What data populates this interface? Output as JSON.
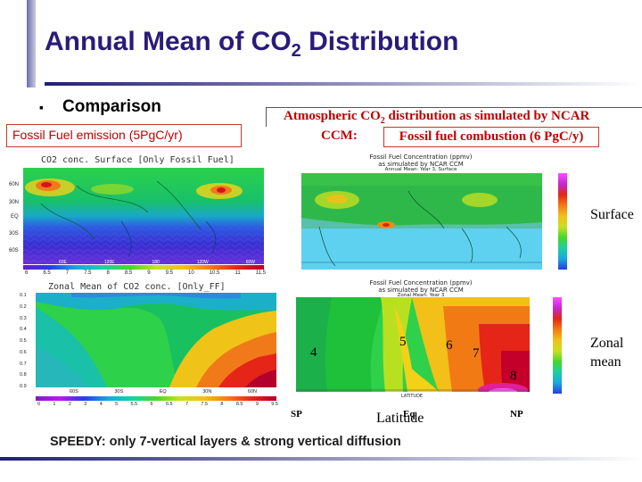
{
  "slide": {
    "title_main": "Annual Mean of CO",
    "title_sub": "2",
    "title_rest": " Distribution",
    "bullet": "▪",
    "comparison": "Comparison",
    "fossil_box": "Fossil Fuel emission (5PgC/yr)",
    "ncar_line1_a": "Atmospheric CO",
    "ncar_line1_sub": "2",
    "ncar_line1_b": " distribution as simulated by NCAR",
    "ncar_ccm": "CCM:",
    "ncar_box": "Fossil fuel combustion (6 PgC/y)",
    "footer": "SPEEDY: only 7-vertical layers & strong vertical diffusion"
  },
  "left_top": {
    "title": "CO2 conc. Surface [Only Fossil Fuel]",
    "lat_ticks": [
      "60N",
      "30N",
      "EQ",
      "30S",
      "60S"
    ],
    "lon_ticks": [
      "60E",
      "120E",
      "180",
      "120W",
      "60W"
    ],
    "cbar_labels": [
      "6",
      "6.5",
      "7",
      "7.5",
      "8",
      "8.5",
      "9",
      "9.5",
      "10",
      "10.5",
      "11",
      "11.5"
    ]
  },
  "left_bottom": {
    "title": "Zonal Mean of CO2 conc. [Only_FF]",
    "sigma_ticks": [
      "0.1",
      "0.2",
      "0.3",
      "0.4",
      "0.5",
      "0.6",
      "0.7",
      "0.8",
      "0.9"
    ],
    "lat_ticks": [
      "60S",
      "30S",
      "EQ",
      "30N",
      "60N"
    ],
    "cbar_labels": [
      "0",
      "1",
      "2",
      "3",
      "4",
      "5",
      "5.5",
      "6",
      "6.5",
      "7",
      "7.5",
      "8",
      "8.5",
      "9",
      "9.5"
    ]
  },
  "right_top": {
    "title_1": "Fossil Fuel Concentration (ppmv)",
    "title_2": "as simulated by NCAR CCM",
    "title_3": "Annual Mean: Year 3, Surface",
    "label": "Surface"
  },
  "right_bottom": {
    "title_1": "Fossil Fuel Concentration (ppmv)",
    "title_2": "as simulated by NCAR CCM",
    "title_3": "Zonal Mean: Year 3",
    "axis_caption": "LATITUDE",
    "label_1": "Zonal",
    "label_2": "mean",
    "zone_numbers": [
      "4",
      "5",
      "6",
      "7",
      "8"
    ],
    "sp": "SP",
    "eq": "Eq",
    "np": "NP",
    "latitude": "Latitude"
  },
  "colors": {
    "title": "#2a1b7a",
    "red_text": "#c00000",
    "box_border": "#c0392b"
  }
}
